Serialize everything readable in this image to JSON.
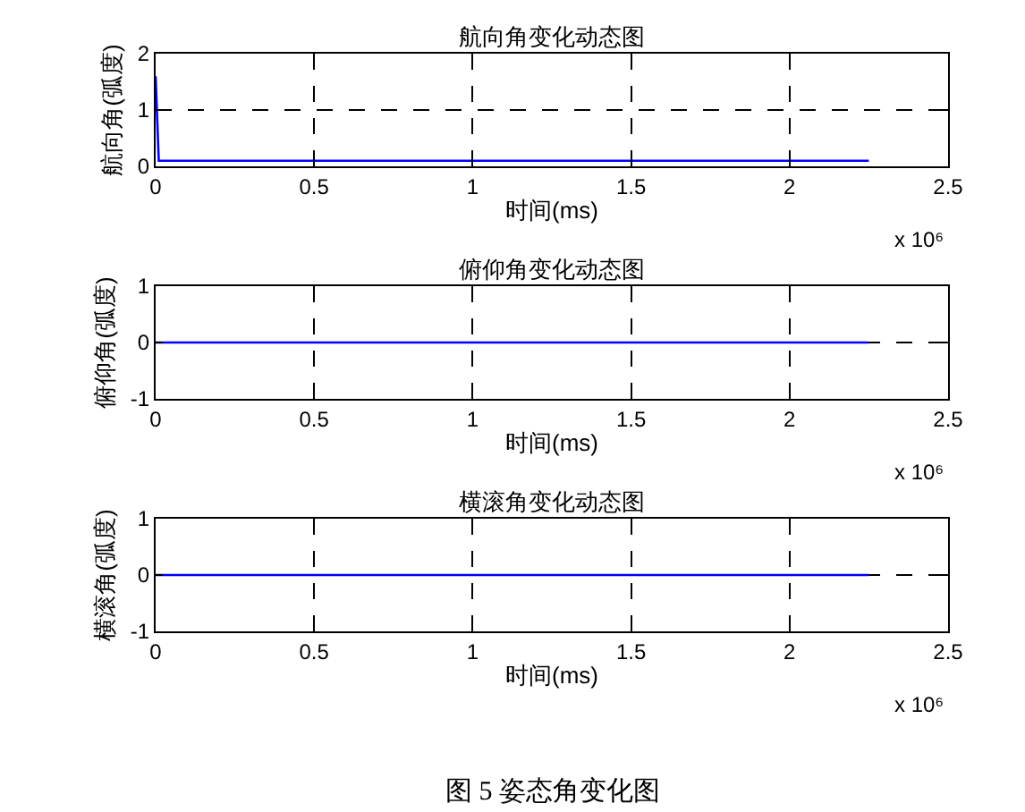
{
  "chart_data": [
    {
      "type": "line",
      "title": "航向角变化动态图",
      "xlabel": "时间(ms)",
      "ylabel": "航向角(弧度)",
      "series": [
        {
          "color": "#0000ff",
          "x": [
            0,
            0.01,
            2.25
          ],
          "values": [
            1.6,
            0.1,
            0.1
          ]
        }
      ],
      "xlim": [
        0,
        2.5
      ],
      "ylim": [
        0,
        2
      ],
      "xticks": [
        0,
        0.5,
        1,
        1.5,
        2,
        2.5
      ],
      "yticks": [
        0,
        1,
        2
      ],
      "grid": true,
      "annotations": [
        "x 10⁶"
      ]
    },
    {
      "type": "line",
      "title": "俯仰角变化动态图",
      "xlabel": "时间(ms)",
      "ylabel": "俯仰角(弧度)",
      "series": [
        {
          "color": "#0000ff",
          "x": [
            0,
            2.25
          ],
          "values": [
            0,
            0
          ]
        }
      ],
      "xlim": [
        0,
        2.5
      ],
      "ylim": [
        -1,
        1
      ],
      "xticks": [
        0,
        0.5,
        1,
        1.5,
        2,
        2.5
      ],
      "yticks": [
        -1,
        0,
        1
      ],
      "grid": true,
      "annotations": [
        "x 10⁶"
      ]
    },
    {
      "type": "line",
      "title": "横滚角变化动态图",
      "xlabel": "时间(ms)",
      "ylabel": "横滚角(弧度)",
      "series": [
        {
          "color": "#0000ff",
          "x": [
            0,
            2.25
          ],
          "values": [
            0,
            0
          ]
        }
      ],
      "xlim": [
        0,
        2.5
      ],
      "ylim": [
        -1,
        1
      ],
      "xticks": [
        0,
        0.5,
        1,
        1.5,
        2,
        2.5
      ],
      "yticks": [
        -1,
        0,
        1
      ],
      "grid": true,
      "annotations": [
        "x 10⁶",
        "图 5 姿态角变化图"
      ]
    }
  ]
}
